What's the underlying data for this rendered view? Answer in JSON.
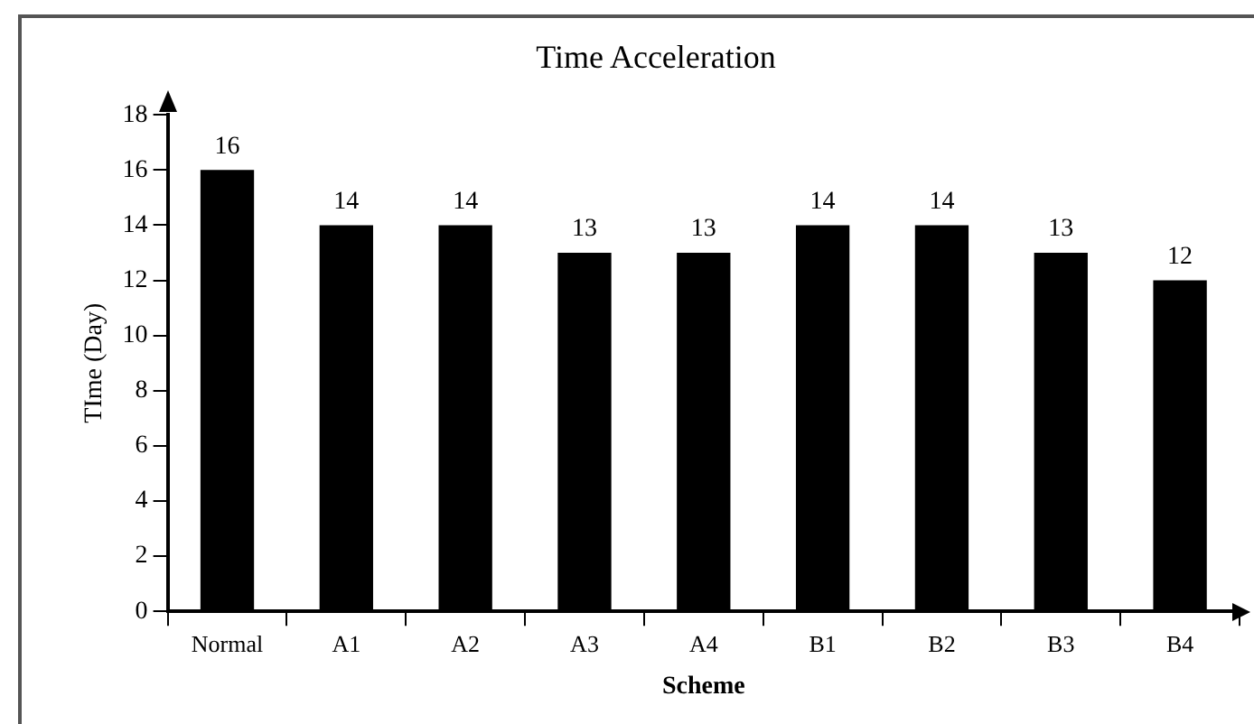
{
  "chart_data": {
    "type": "bar",
    "title": "Time Acceleration",
    "xlabel": "Scheme",
    "ylabel": "TIme (Day)",
    "categories": [
      "Normal",
      "A1",
      "A2",
      "A3",
      "A4",
      "B1",
      "B2",
      "B3",
      "B4"
    ],
    "values": [
      16,
      14,
      14,
      13,
      13,
      14,
      14,
      13,
      12
    ],
    "color": "#000000",
    "ylim": [
      0,
      18
    ],
    "yticks": [
      0,
      2,
      4,
      6,
      8,
      10,
      12,
      14,
      16,
      18
    ],
    "grid": false,
    "legend": false,
    "data_labels": true
  }
}
